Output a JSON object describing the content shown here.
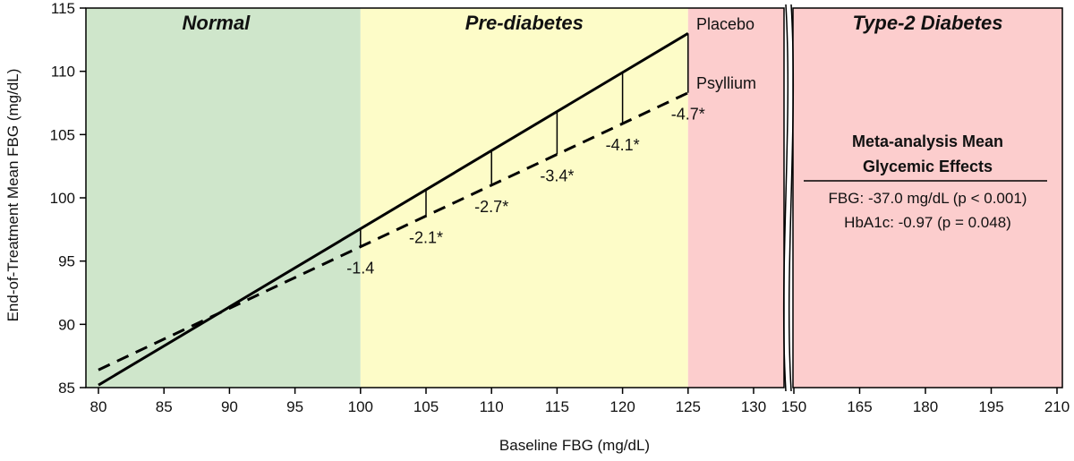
{
  "chart_data": {
    "type": "line",
    "xlabel": "Baseline FBG (mg/dL)",
    "ylabel": "End-of-Treatment Mean FBG (mg/dL)",
    "ylim": [
      85,
      115
    ],
    "xlim_left": [
      80,
      132
    ],
    "xlim_right": [
      150,
      210
    ],
    "x_ticks_left": [
      80,
      85,
      90,
      95,
      100,
      105,
      110,
      115,
      120,
      125,
      130
    ],
    "x_ticks_right": [
      150,
      165,
      180,
      195,
      210
    ],
    "y_ticks": [
      85,
      90,
      95,
      100,
      105,
      110,
      115
    ],
    "colors": {
      "normal": "#cfe6cb",
      "prediabetes": "#fdfcc8",
      "diabetes": "#fccdcd"
    },
    "zones": [
      {
        "label": "Normal",
        "from": 80,
        "to": 100,
        "color_key": "normal"
      },
      {
        "label": "Pre-diabetes",
        "from": 100,
        "to": 125,
        "color_key": "prediabetes"
      },
      {
        "label": "Type-2 Diabetes",
        "from": 125,
        "to": 210,
        "color_key": "diabetes"
      }
    ],
    "series": [
      {
        "name": "Placebo",
        "style": "solid",
        "x": [
          80,
          125
        ],
        "y": [
          85.2,
          113.0
        ]
      },
      {
        "name": "Psyllium",
        "style": "dashed",
        "x": [
          80,
          125
        ],
        "y": [
          86.4,
          108.3
        ]
      }
    ],
    "differences": [
      {
        "x": 100,
        "label": "-1.4"
      },
      {
        "x": 105,
        "label": "-2.1*"
      },
      {
        "x": 110,
        "label": "-2.7*"
      },
      {
        "x": 115,
        "label": "-3.4*"
      },
      {
        "x": 120,
        "label": "-4.1*"
      },
      {
        "x": 125,
        "label": "-4.7*"
      }
    ],
    "annotation": {
      "title_lines": [
        "Meta-analysis Mean",
        "Glycemic Effects"
      ],
      "lines": [
        "FBG: -37.0 mg/dL  (p < 0.001)",
        "HbA1c: -0.97  (p = 0.048)"
      ]
    }
  }
}
